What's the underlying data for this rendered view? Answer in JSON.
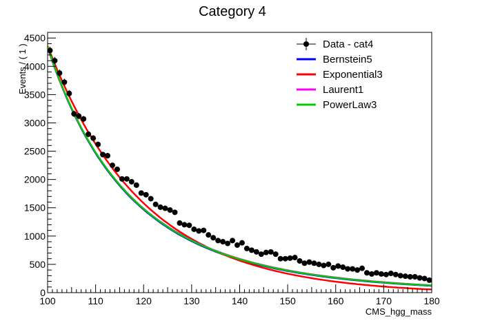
{
  "chart_data": {
    "type": "line",
    "title": "Category 4",
    "xlabel": "CMS_hgg_mass",
    "ylabel": "Events / ( 1 )",
    "xlim": [
      100,
      180
    ],
    "ylim": [
      0,
      4600
    ],
    "xticks": [
      100,
      110,
      120,
      130,
      140,
      150,
      160,
      170,
      180
    ],
    "yticks": [
      0,
      500,
      1000,
      1500,
      2000,
      2500,
      3000,
      3500,
      4000,
      4500
    ],
    "legend_position": "top-right",
    "data": {
      "name": "Data - cat4",
      "color": "#000000",
      "x": [
        100.5,
        101.5,
        102.5,
        103.5,
        104.5,
        105.5,
        106.5,
        107.5,
        108.5,
        109.5,
        110.5,
        111.5,
        112.5,
        113.5,
        114.5,
        115.5,
        116.5,
        117.5,
        118.5,
        119.5,
        120.5,
        121.5,
        122.5,
        123.5,
        124.5,
        125.5,
        126.5,
        127.5,
        128.5,
        129.5,
        130.5,
        131.5,
        132.5,
        133.5,
        134.5,
        135.5,
        136.5,
        137.5,
        138.5,
        139.5,
        140.5,
        141.5,
        142.5,
        143.5,
        144.5,
        145.5,
        146.5,
        147.5,
        148.5,
        149.5,
        150.5,
        151.5,
        152.5,
        153.5,
        154.5,
        155.5,
        156.5,
        157.5,
        158.5,
        159.5,
        160.5,
        161.5,
        162.5,
        163.5,
        164.5,
        165.5,
        166.5,
        167.5,
        168.5,
        169.5,
        170.5,
        171.5,
        172.5,
        173.5,
        174.5,
        175.5,
        176.5,
        177.5,
        178.5,
        179.5
      ],
      "y": [
        4280,
        4100,
        3880,
        3720,
        3520,
        3160,
        3120,
        3070,
        2800,
        2730,
        2620,
        2440,
        2420,
        2250,
        2180,
        2010,
        2010,
        1960,
        1900,
        1760,
        1730,
        1660,
        1560,
        1510,
        1490,
        1460,
        1420,
        1230,
        1200,
        1190,
        1120,
        1090,
        1100,
        1020,
        970,
        920,
        900,
        870,
        920,
        840,
        880,
        780,
        750,
        720,
        680,
        710,
        720,
        680,
        600,
        600,
        610,
        620,
        560,
        520,
        540,
        520,
        500,
        480,
        500,
        440,
        470,
        450,
        420,
        420,
        400,
        430,
        350,
        330,
        350,
        330,
        320,
        340,
        320,
        300,
        290,
        280,
        280,
        260,
        250,
        220
      ]
    },
    "series": [
      {
        "name": "Bernstein5",
        "color": "#0000ff"
      },
      {
        "name": "Exponential3",
        "color": "#ff0000"
      },
      {
        "name": "Laurent1",
        "color": "#ff00ff"
      },
      {
        "name": "PowerLaw3",
        "color": "#00cc00"
      }
    ]
  }
}
